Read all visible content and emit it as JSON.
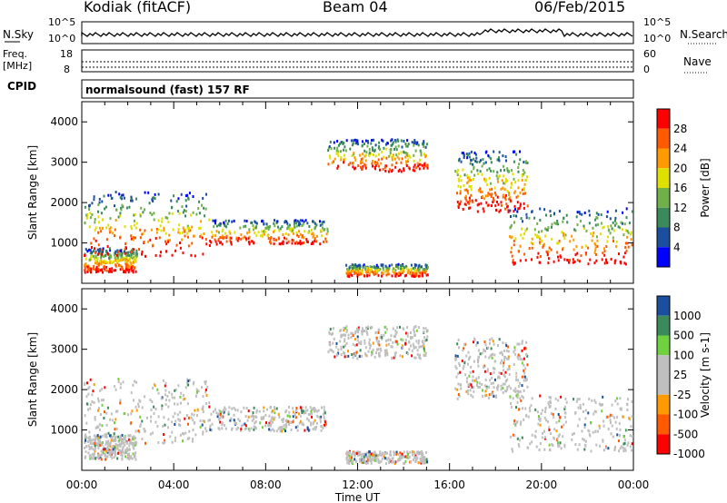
{
  "header": {
    "station": "Kodiak (fitACF)",
    "beam": "Beam 04",
    "date": "06/Feb/2015"
  },
  "noise_panel": {
    "left_label": "N.Sky",
    "right_label": "N.Search",
    "left_ticks": [
      "10^5",
      "10^0"
    ],
    "right_ticks": [
      "10^5",
      "10^0"
    ]
  },
  "freq_panel": {
    "left_label": "Freq.",
    "left_unit": "[MHz]",
    "left_ticks": [
      "18",
      "8"
    ],
    "right_label": "Nave",
    "right_ticks": [
      "60",
      "0"
    ]
  },
  "cpid_panel": {
    "label": "CPID",
    "text": "normalsound (fast) 157 RF"
  },
  "colors": {
    "power_scale": [
      "#0000ff",
      "#1a4fa0",
      "#3a8a5a",
      "#6fb048",
      "#e0e000",
      "#ff9a00",
      "#ff5a00",
      "#ff0000"
    ],
    "velocity_scale": [
      "#ff0000",
      "#ff5a00",
      "#ff9a00",
      "#bfbfbf",
      "#bfbfbf",
      "#6fd040",
      "#3a8a5a",
      "#1a4fa0"
    ]
  },
  "chart_data": [
    {
      "type": "heatmap",
      "title": "",
      "xlabel": "",
      "ylabel": "Slant Range [km]",
      "ylim": [
        0,
        4500
      ],
      "yticks": [
        "1000",
        "2000",
        "3000",
        "4000"
      ],
      "colorbar": {
        "label": "Power [dB]",
        "ticks": [
          "4",
          "8",
          "12",
          "16",
          "20",
          "24",
          "28"
        ]
      }
    },
    {
      "type": "heatmap",
      "title": "",
      "xlabel": "Time UT",
      "ylabel": "Slant Range [km]",
      "ylim": [
        0,
        4500
      ],
      "yticks": [
        "1000",
        "2000",
        "3000",
        "4000"
      ],
      "xticks": [
        "00:00",
        "04:00",
        "08:00",
        "12:00",
        "16:00",
        "20:00",
        "00:00"
      ],
      "colorbar": {
        "label": "Velocity [m s-1]",
        "ticks": [
          "1000",
          "500",
          "100",
          "25",
          "-25",
          "-100",
          "-500",
          "-1000"
        ]
      }
    }
  ]
}
